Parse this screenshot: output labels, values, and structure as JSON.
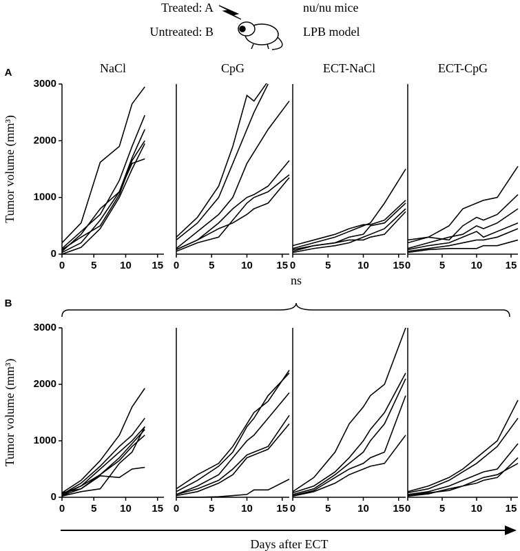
{
  "figure": {
    "treated": "Treated: A",
    "untreated": "Untreated: B",
    "strain": "nu/nu mice",
    "model": "LPB model",
    "panel_labels": [
      "A",
      "B"
    ],
    "ns": "ns",
    "x_axis_label": "Days after ECT"
  },
  "chart_data": [
    {
      "type": "line",
      "title": "NaCl",
      "y_label": "Tumor volume (mm³)",
      "x": [
        0,
        3,
        6,
        9,
        11,
        13
      ],
      "xlim": [
        0,
        16
      ],
      "xticks": [
        0,
        5,
        10,
        15
      ],
      "ylim": [
        0,
        3000
      ],
      "yticks": [
        0,
        1000,
        2000,
        3000
      ],
      "series": [
        {
          "color": "#000000",
          "values": [
            200,
            550,
            1620,
            1900,
            2650,
            2950
          ]
        },
        {
          "color": "#000000",
          "values": [
            100,
            400,
            700,
            1300,
            1900,
            2450
          ]
        },
        {
          "color": "#000000",
          "values": [
            50,
            350,
            800,
            1100,
            1700,
            2200
          ]
        },
        {
          "color": "#000000",
          "values": [
            80,
            300,
            500,
            1050,
            1650,
            2000
          ]
        },
        {
          "color": "#000000",
          "values": [
            30,
            200,
            600,
            1100,
            1600,
            1680
          ]
        },
        {
          "color": "#000000",
          "values": [
            0,
            120,
            450,
            1000,
            1500,
            1950
          ]
        }
      ]
    },
    {
      "type": "line",
      "title": "CpG",
      "x": [
        0,
        3,
        6,
        8,
        10,
        11,
        13,
        16
      ],
      "xlim": [
        0,
        16
      ],
      "xticks": [
        0,
        5,
        10,
        15
      ],
      "ylim": [
        0,
        3000
      ],
      "series": [
        {
          "color": "#000000",
          "values": [
            300,
            650,
            1200,
            1900,
            2800,
            2700,
            3050,
            null
          ]
        },
        {
          "color": "#000000",
          "values": [
            250,
            550,
            1000,
            1600,
            2200,
            2500,
            3000,
            null
          ]
        },
        {
          "color": "#000000",
          "values": [
            100,
            400,
            700,
            1000,
            1600,
            1800,
            2200,
            2700
          ]
        },
        {
          "color": "#000000",
          "values": [
            80,
            250,
            550,
            800,
            1000,
            1050,
            1200,
            1650
          ]
        },
        {
          "color": "#000000",
          "values": [
            50,
            200,
            300,
            600,
            900,
            1000,
            1100,
            1400
          ]
        },
        {
          "color": "#000000",
          "values": [
            80,
            250,
            450,
            550,
            700,
            800,
            900,
            1350
          ]
        }
      ]
    },
    {
      "type": "line",
      "title": "ECT-NaCl",
      "x": [
        0,
        3,
        6,
        8,
        10,
        11,
        13,
        16
      ],
      "xlim": [
        0,
        16
      ],
      "xticks": [
        0,
        5,
        10,
        15
      ],
      "ylim": [
        0,
        3000
      ],
      "series": [
        {
          "color": "#000000",
          "values": [
            100,
            200,
            300,
            400,
            500,
            550,
            900,
            1500
          ]
        },
        {
          "color": "#000000",
          "values": [
            150,
            250,
            350,
            450,
            520,
            520,
            600,
            950
          ]
        },
        {
          "color": "#000000",
          "values": [
            50,
            150,
            200,
            300,
            350,
            500,
            550,
            900
          ]
        },
        {
          "color": "#000000",
          "values": [
            30,
            100,
            150,
            200,
            300,
            350,
            450,
            800
          ]
        },
        {
          "color": "#000000",
          "values": [
            80,
            150,
            200,
            250,
            250,
            300,
            350,
            750
          ]
        }
      ]
    },
    {
      "type": "line",
      "title": "ECT-CpG",
      "x": [
        0,
        3,
        6,
        8,
        10,
        11,
        13,
        16
      ],
      "xlim": [
        0,
        16
      ],
      "xticks": [
        0,
        5,
        10,
        15
      ],
      "ylim": [
        0,
        3000
      ],
      "series": [
        {
          "color": "#000000",
          "values": [
            200,
            300,
            500,
            800,
            900,
            950,
            1000,
            1550
          ]
        },
        {
          "color": "#000000",
          "values": [
            250,
            300,
            250,
            500,
            650,
            600,
            700,
            1050
          ]
        },
        {
          "color": "#000000",
          "values": [
            100,
            200,
            300,
            350,
            500,
            450,
            550,
            800
          ]
        },
        {
          "color": "#000000",
          "values": [
            80,
            150,
            200,
            300,
            400,
            300,
            400,
            550
          ]
        },
        {
          "color": "#000000",
          "values": [
            50,
            100,
            150,
            200,
            250,
            250,
            300,
            450
          ]
        },
        {
          "color": "#000000",
          "values": [
            30,
            80,
            100,
            100,
            100,
            150,
            150,
            250
          ]
        }
      ]
    },
    {
      "type": "line",
      "y_label": "Tumor volume (mm³)",
      "x": [
        0,
        3,
        6,
        9,
        11,
        13
      ],
      "xlim": [
        0,
        16
      ],
      "xticks": [
        0,
        5,
        10,
        15
      ],
      "ylim": [
        0,
        3000
      ],
      "yticks": [
        0,
        1000,
        2000,
        3000
      ],
      "series": [
        {
          "color": "#000000",
          "values": [
            80,
            300,
            650,
            1100,
            1600,
            1930
          ]
        },
        {
          "color": "#000000",
          "values": [
            50,
            250,
            550,
            900,
            1100,
            1400
          ]
        },
        {
          "color": "#000000",
          "values": [
            40,
            200,
            500,
            800,
            1000,
            1250
          ]
        },
        {
          "color": "#000000",
          "values": [
            30,
            150,
            400,
            700,
            950,
            1200
          ]
        },
        {
          "color": "#000000",
          "values": [
            60,
            200,
            400,
            650,
            900,
            1100
          ]
        },
        {
          "color": "#000000",
          "values": [
            80,
            150,
            380,
            350,
            500,
            530
          ]
        },
        {
          "color": "#000000",
          "values": [
            20,
            100,
            150,
            600,
            800,
            1250
          ]
        }
      ]
    },
    {
      "type": "line",
      "x": [
        0,
        3,
        6,
        8,
        10,
        11,
        13,
        16
      ],
      "xlim": [
        0,
        16
      ],
      "xticks": [
        0,
        5,
        10,
        15
      ],
      "ylim": [
        0,
        3000
      ],
      "series": [
        {
          "color": "#000000",
          "values": [
            150,
            400,
            600,
            900,
            1300,
            1500,
            1700,
            2250
          ]
        },
        {
          "color": "#000000",
          "values": [
            100,
            300,
            550,
            800,
            1250,
            1400,
            1800,
            2200
          ]
        },
        {
          "color": "#000000",
          "values": [
            50,
            200,
            400,
            700,
            1000,
            1100,
            1400,
            1850
          ]
        },
        {
          "color": "#000000",
          "values": [
            50,
            150,
            300,
            500,
            750,
            800,
            900,
            1450
          ]
        },
        {
          "color": "#000000",
          "values": [
            30,
            100,
            250,
            400,
            700,
            750,
            850,
            1300
          ]
        },
        {
          "color": "#000000",
          "values": [
            0,
            0,
            10,
            30,
            50,
            130,
            130,
            320
          ]
        }
      ]
    },
    {
      "type": "line",
      "x": [
        0,
        3,
        6,
        8,
        10,
        11,
        13,
        16
      ],
      "xlim": [
        0,
        16
      ],
      "xticks": [
        0,
        5,
        10,
        15
      ],
      "ylim": [
        0,
        3000
      ],
      "series": [
        {
          "color": "#000000",
          "values": [
            100,
            350,
            800,
            1300,
            1600,
            1800,
            2000,
            3000
          ]
        },
        {
          "color": "#000000",
          "values": [
            80,
            200,
            450,
            700,
            1000,
            1200,
            1500,
            2200
          ]
        },
        {
          "color": "#000000",
          "values": [
            50,
            150,
            400,
            600,
            800,
            1000,
            1300,
            2100
          ]
        },
        {
          "color": "#000000",
          "values": [
            30,
            120,
            350,
            500,
            600,
            700,
            800,
            1800
          ]
        },
        {
          "color": "#000000",
          "values": [
            20,
            100,
            250,
            400,
            500,
            550,
            600,
            1100
          ]
        }
      ]
    },
    {
      "type": "line",
      "x": [
        0,
        3,
        6,
        8,
        10,
        11,
        13,
        16
      ],
      "xlim": [
        0,
        16
      ],
      "xticks": [
        0,
        5,
        10,
        15
      ],
      "ylim": [
        0,
        3000
      ],
      "series": [
        {
          "color": "#000000",
          "values": [
            100,
            200,
            350,
            500,
            700,
            800,
            1000,
            1720
          ]
        },
        {
          "color": "#000000",
          "values": [
            80,
            150,
            300,
            450,
            600,
            700,
            900,
            1400
          ]
        },
        {
          "color": "#000000",
          "values": [
            50,
            100,
            200,
            300,
            400,
            450,
            500,
            950
          ]
        },
        {
          "color": "#000000",
          "values": [
            20,
            60,
            150,
            200,
            300,
            350,
            400,
            600
          ]
        },
        {
          "color": "#000000",
          "values": [
            30,
            80,
            120,
            200,
            250,
            300,
            350,
            700
          ]
        }
      ]
    }
  ]
}
